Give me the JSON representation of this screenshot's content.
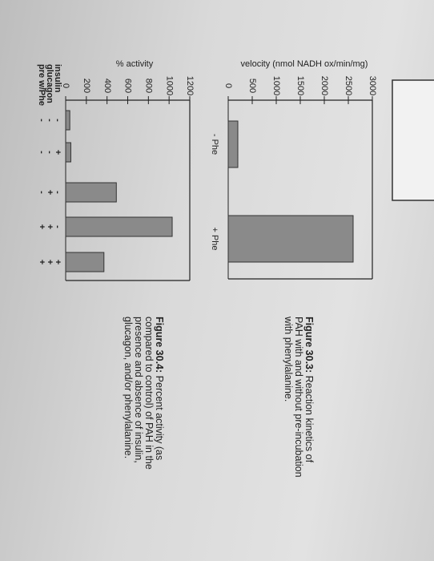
{
  "chart_data": [
    {
      "type": "bar",
      "figure_label": "Figure 30.3:",
      "caption": "Reaction kinetics of PAH with and without pre-incubation with phenylalanine.",
      "ylabel": "velocity (nmol NADH ox/min/mg)",
      "categories": [
        "- Phe",
        "+ Phe"
      ],
      "values": [
        200,
        2600
      ],
      "color": "#8a8a8a",
      "ylim": [
        0,
        3000
      ],
      "yticks": [
        0,
        500,
        1000,
        1500,
        2000,
        2500,
        3000
      ]
    },
    {
      "type": "bar",
      "figure_label": "Figure 30.4:",
      "caption": "Percent activity (as compared to control) of PAH in the presence and absence of insulin, glucagon, and/or phenylalanine.",
      "ylabel": "% activity",
      "values": [
        40,
        50,
        490,
        1030,
        370
      ],
      "color": "#8a8a8a",
      "conditions": [
        {
          "name": "insulin",
          "signs": [
            "-",
            "+",
            "-",
            "-",
            "+"
          ]
        },
        {
          "name": "glucagon",
          "signs": [
            "-",
            "-",
            "+",
            "+",
            "+"
          ]
        },
        {
          "name": "pre w/Phe",
          "signs": [
            "-",
            "-",
            "-",
            "+",
            "+"
          ]
        }
      ],
      "ylim": [
        0,
        1200
      ],
      "yticks": [
        0,
        200,
        400,
        600,
        800,
        1000,
        1200
      ]
    }
  ]
}
